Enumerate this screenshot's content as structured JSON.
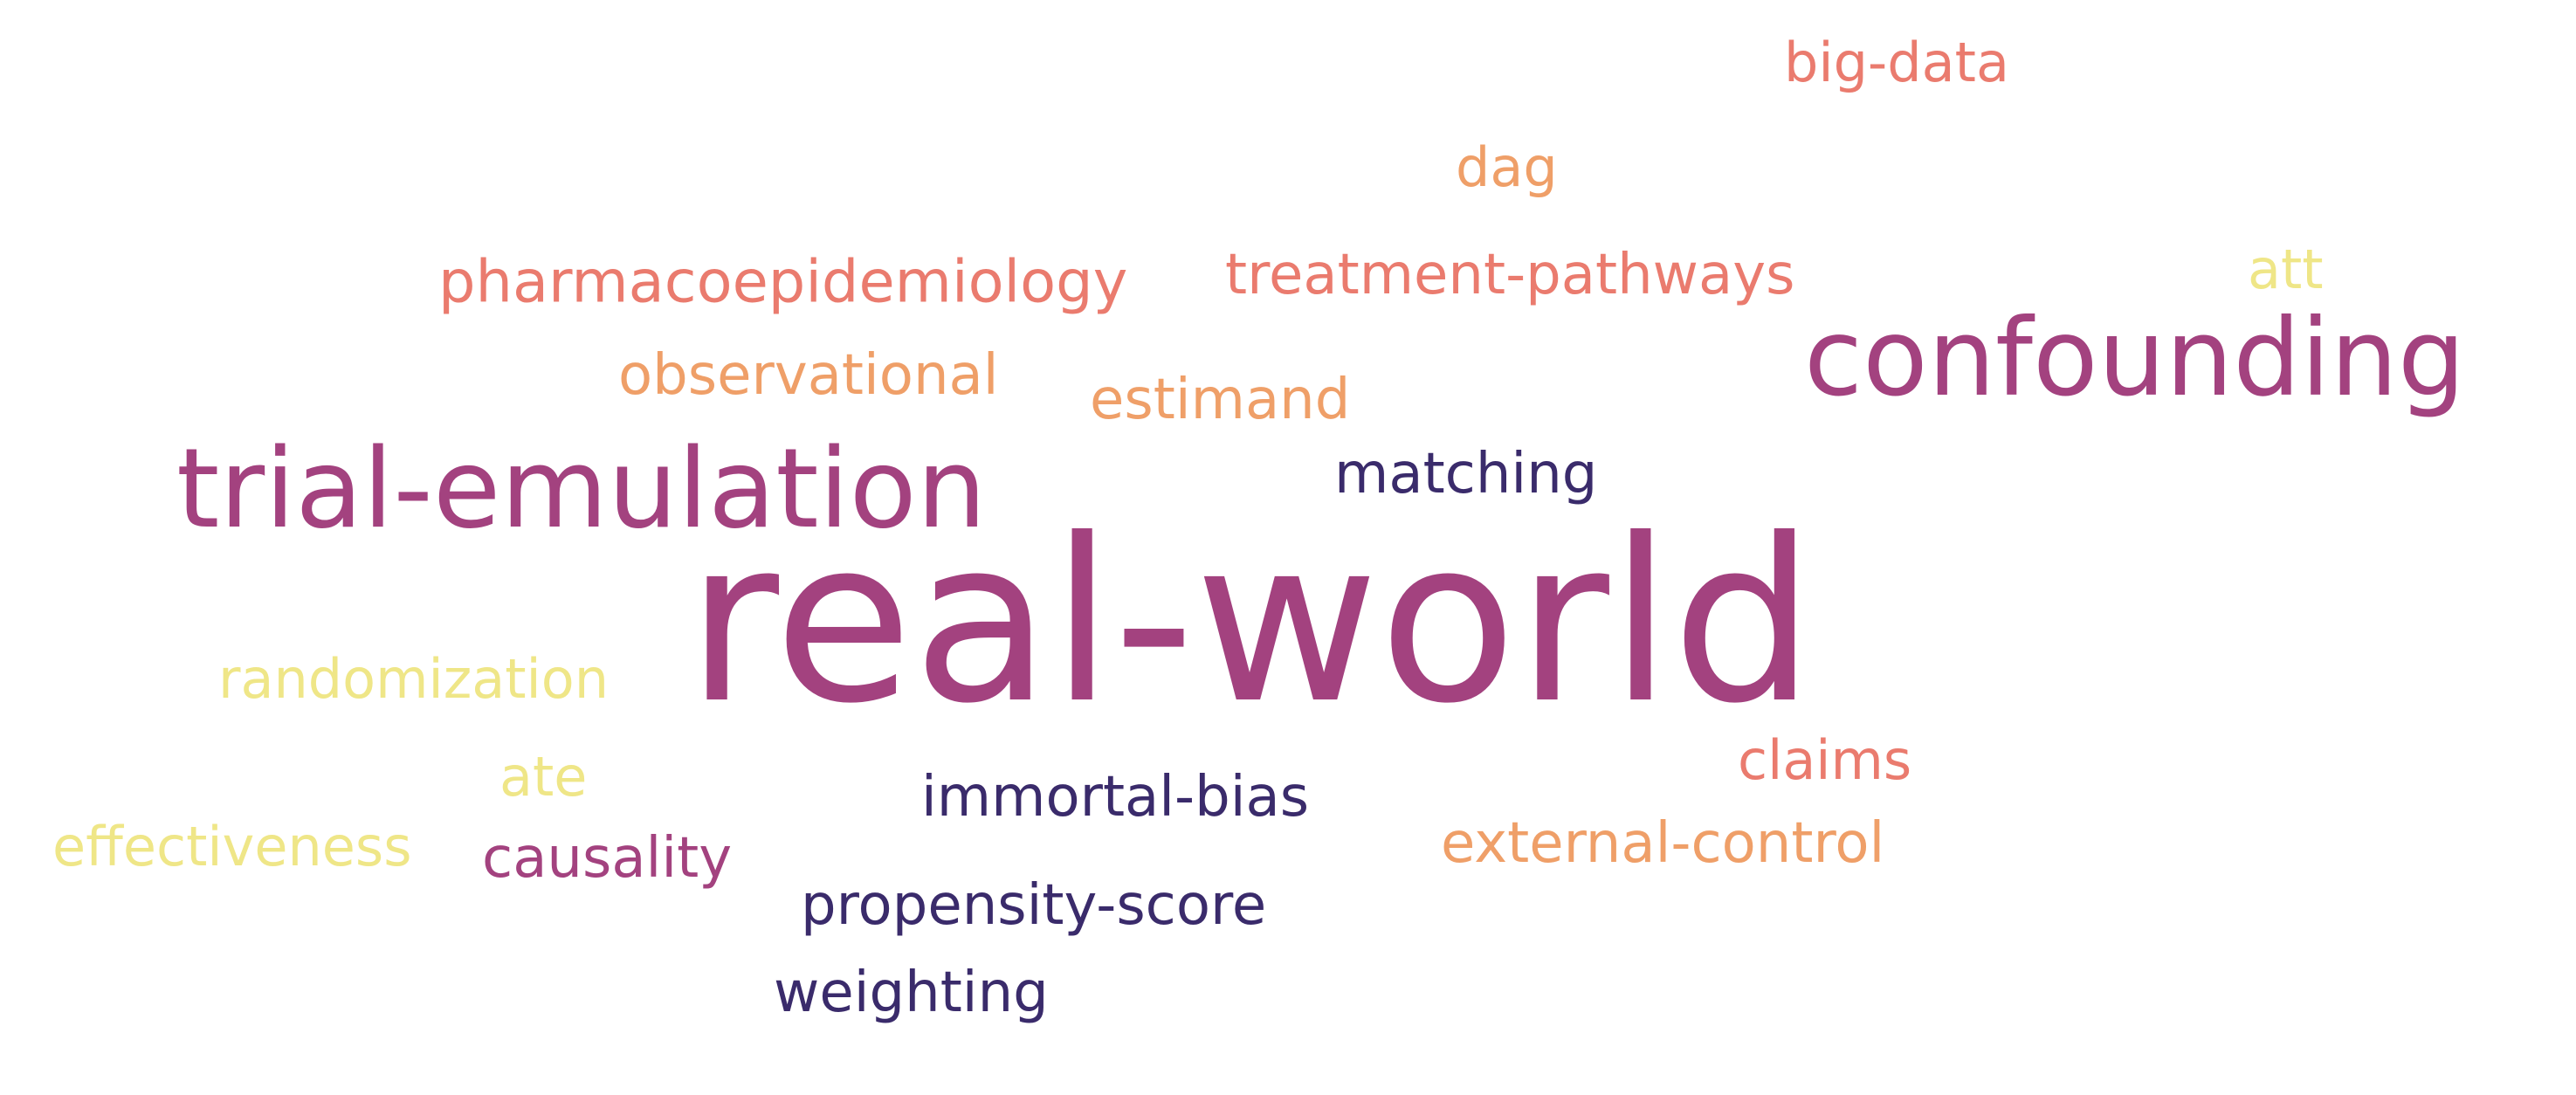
{
  "words": [
    {
      "text": "big-data",
      "color": "#ea7b6e"
    },
    {
      "text": "dag",
      "color": "#ef9f68"
    },
    {
      "text": "pharmacoepidemiology",
      "color": "#ea7b6e"
    },
    {
      "text": "treatment-pathways",
      "color": "#ea7b6e"
    },
    {
      "text": "att",
      "color": "#efe687"
    },
    {
      "text": "confounding",
      "color": "#a3427f"
    },
    {
      "text": "observational",
      "color": "#ef9f68"
    },
    {
      "text": "estimand",
      "color": "#ef9f68"
    },
    {
      "text": "trial-emulation",
      "color": "#a3427f"
    },
    {
      "text": "matching",
      "color": "#3a2b6b"
    },
    {
      "text": "real-world",
      "color": "#a3427f"
    },
    {
      "text": "randomization",
      "color": "#efe687"
    },
    {
      "text": "claims",
      "color": "#ea7b6e"
    },
    {
      "text": "ate",
      "color": "#efe687"
    },
    {
      "text": "immortal-bias",
      "color": "#3a2b6b"
    },
    {
      "text": "effectiveness",
      "color": "#efe687"
    },
    {
      "text": "causality",
      "color": "#a3427f"
    },
    {
      "text": "external-control",
      "color": "#ef9f68"
    },
    {
      "text": "propensity-score",
      "color": "#3a2b6b"
    },
    {
      "text": "weighting",
      "color": "#3a2b6b"
    }
  ]
}
